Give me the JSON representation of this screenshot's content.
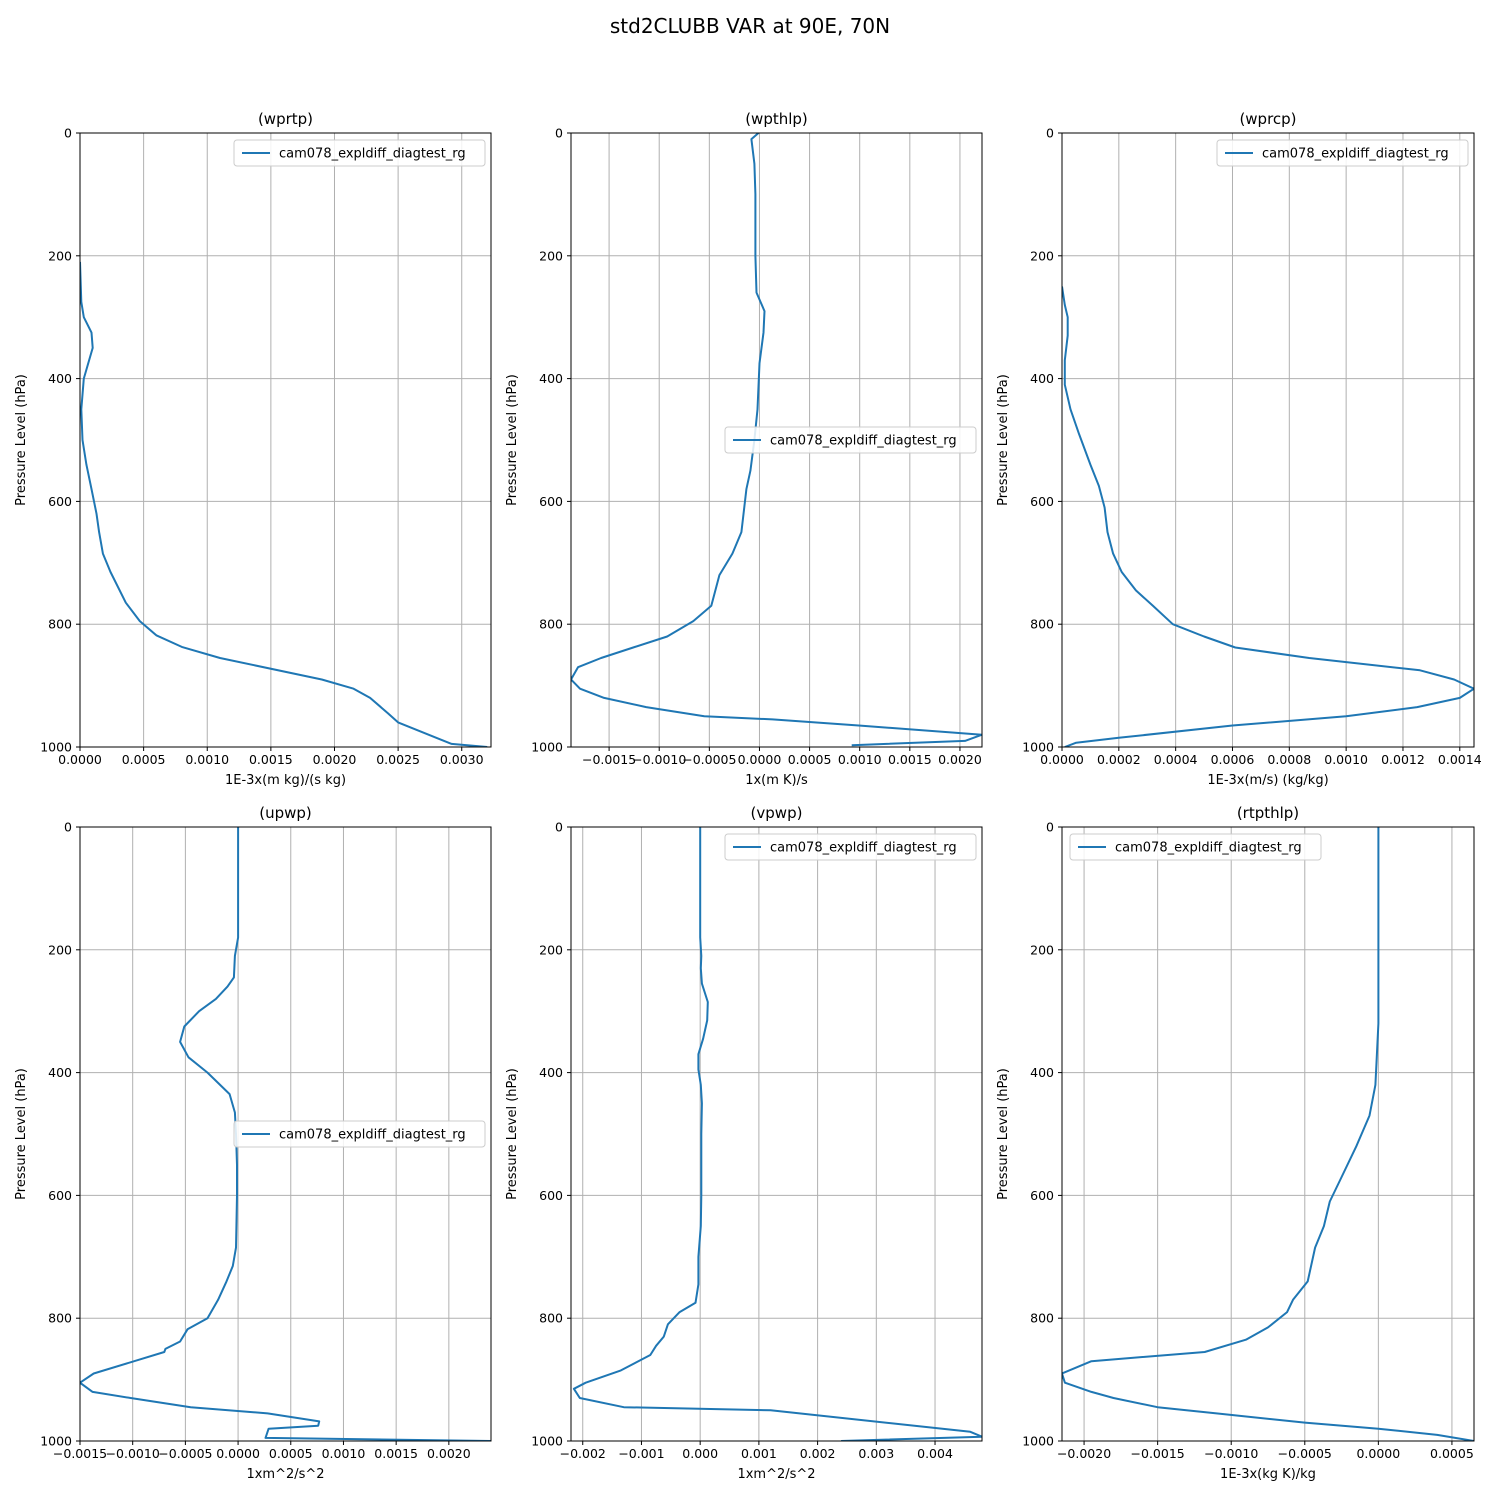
{
  "figure": {
    "title": "std2CLUBB VAR at 90E, 70N",
    "line_color": "#1f77b4",
    "grid_color": "#b0b0b0"
  },
  "chart_data": [
    {
      "type": "line",
      "title": "(wprtp)",
      "xlabel": "1E-3x(m kg)/(s kg)",
      "ylabel": "Pressure Level (hPa)",
      "xlim": [
        0,
        0.00323
      ],
      "ylim": [
        1000,
        0
      ],
      "xticks": [
        0,
        0.0005,
        0.001,
        0.0015,
        0.002,
        0.0025,
        0.003
      ],
      "xtick_labels": [
        "0.0000",
        "0.0005",
        "0.0010",
        "0.0015",
        "0.0020",
        "0.0025",
        "0.0030"
      ],
      "yticks": [
        0,
        200,
        400,
        600,
        800,
        1000
      ],
      "ytick_labels": [
        "0",
        "200",
        "400",
        "600",
        "800",
        "1000"
      ],
      "grid": true,
      "legend": "upper right",
      "series": [
        {
          "name": "cam078_expldiff_diagtest_rg",
          "x": [
            0.0,
            1e-05,
            3e-05,
            9e-05,
            0.0001,
            3e-05,
            1e-05,
            2e-05,
            5e-05,
            9e-05,
            0.00013,
            0.00015,
            0.00018,
            0.00024,
            0.00036,
            0.00047,
            0.0006,
            0.0008,
            0.0011,
            0.0019,
            0.00215,
            0.00228,
            0.00242,
            0.0025,
            0.0028,
            0.00292,
            0.0032
          ],
          "y": [
            210,
            275,
            300,
            325,
            350,
            400,
            450,
            500,
            540,
            580,
            620,
            650,
            685,
            715,
            765,
            795,
            818,
            837,
            855,
            890,
            905,
            920,
            945,
            960,
            985,
            995,
            1000
          ]
        }
      ]
    },
    {
      "type": "line",
      "title": "(wpthlp)",
      "xlabel": "1x(m K)/s",
      "ylabel": "Pressure Level (hPa)",
      "xlim": [
        -0.00188,
        0.00222
      ],
      "ylim": [
        1000,
        0
      ],
      "xticks": [
        -0.0015,
        -0.001,
        -0.0005,
        0,
        0.0005,
        0.001,
        0.0015,
        0.002
      ],
      "xtick_labels": [
        "−0.0015",
        "−0.0010",
        "−0.0005",
        "0.0000",
        "0.0005",
        "0.0010",
        "0.0015",
        "0.0020"
      ],
      "yticks": [
        0,
        200,
        400,
        600,
        800,
        1000
      ],
      "ytick_labels": [
        "0",
        "200",
        "400",
        "600",
        "800",
        "1000"
      ],
      "grid": true,
      "legend": "center right",
      "series": [
        {
          "name": "cam078_expldiff_diagtest_rg",
          "x": [
            -1e-05,
            -8e-05,
            -5e-05,
            -4e-05,
            -4e-05,
            -4e-05,
            -3e-05,
            5e-05,
            4e-05,
            0.0,
            -2e-05,
            -5e-05,
            -9e-05,
            -0.00013,
            -0.00018,
            -0.00027,
            -0.0004,
            -0.00048,
            -0.00066,
            -0.00092,
            -0.00126,
            -0.00158,
            -0.00181,
            -0.00188,
            -0.00179,
            -0.00155,
            -0.00113,
            -0.00055,
            0.00013,
            0.00099,
            0.00222,
            0.00205,
            0.00092
          ],
          "y": [
            0,
            10,
            50,
            100,
            150,
            200,
            260,
            290,
            325,
            375,
            450,
            500,
            550,
            580,
            650,
            685,
            720,
            770,
            795,
            820,
            838,
            855,
            870,
            890,
            905,
            920,
            935,
            950,
            955,
            965,
            980,
            990,
            997
          ]
        }
      ]
    },
    {
      "type": "line",
      "title": "(wprcp)",
      "xlabel": "1E-3x(m/s) (kg/kg)",
      "ylabel": "Pressure Level (hPa)",
      "xlim": [
        0,
        0.00145
      ],
      "ylim": [
        1000,
        0
      ],
      "xticks": [
        0,
        0.0002,
        0.0004,
        0.0006,
        0.0008,
        0.001,
        0.0012,
        0.0014
      ],
      "xtick_labels": [
        "0.0000",
        "0.0002",
        "0.0004",
        "0.0006",
        "0.0008",
        "0.0010",
        "0.0012",
        "0.0014"
      ],
      "yticks": [
        0,
        200,
        400,
        600,
        800,
        1000
      ],
      "ytick_labels": [
        "0",
        "200",
        "400",
        "600",
        "800",
        "1000"
      ],
      "grid": true,
      "legend": "upper right",
      "series": [
        {
          "name": "cam078_expldiff_diagtest_rg",
          "x": [
            0.0,
            1e-05,
            2e-05,
            2e-05,
            1e-05,
            1e-05,
            3e-05,
            6e-05,
            0.0001,
            0.00013,
            0.00015,
            0.00016,
            0.00018,
            0.00021,
            0.00026,
            0.00032,
            0.00039,
            0.0005,
            0.00061,
            0.00087,
            0.00126,
            0.00138,
            0.00145,
            0.0014,
            0.00125,
            0.001,
            0.0006,
            0.0002,
            5e-05,
            1e-05
          ],
          "y": [
            250,
            280,
            300,
            330,
            370,
            410,
            450,
            490,
            540,
            575,
            610,
            650,
            685,
            715,
            745,
            770,
            800,
            820,
            838,
            855,
            875,
            890,
            905,
            920,
            935,
            950,
            965,
            985,
            993,
            1000
          ]
        }
      ]
    },
    {
      "type": "line",
      "title": "(upwp)",
      "xlabel": "1xm^2/s^2",
      "ylabel": "Pressure Level (hPa)",
      "xlim": [
        -0.0015,
        0.0024
      ],
      "ylim": [
        1000,
        0
      ],
      "xticks": [
        -0.0015,
        -0.001,
        -0.0005,
        0,
        0.0005,
        0.001,
        0.0015,
        0.002
      ],
      "xtick_labels": [
        "−0.0015",
        "−0.0010",
        "−0.0005",
        "0.0000",
        "0.0005",
        "0.0010",
        "0.0015",
        "0.0020"
      ],
      "yticks": [
        0,
        200,
        400,
        600,
        800,
        1000
      ],
      "ytick_labels": [
        "0",
        "200",
        "400",
        "600",
        "800",
        "1000"
      ],
      "grid": true,
      "legend": "center right",
      "series": [
        {
          "name": "cam078_expldiff_diagtest_rg",
          "x": [
            0.0,
            0.0,
            0.0,
            -3e-05,
            -4e-05,
            -0.0001,
            -0.00021,
            -0.00037,
            -0.00051,
            -0.00055,
            -0.00047,
            -0.00029,
            -8e-05,
            -3e-05,
            -2e-05,
            -1e-05,
            -1e-05,
            -2e-05,
            -5e-05,
            -0.00011,
            -0.00019,
            -0.00029,
            -0.00048,
            -0.00055,
            -0.00069,
            -0.0007,
            -0.00137,
            -0.0015,
            -0.00138,
            -0.00102,
            -0.00045,
            0.00028,
            0.00077,
            0.00076,
            0.00029,
            0.00026,
            0.0024
          ],
          "y": [
            0,
            100,
            180,
            210,
            245,
            260,
            280,
            300,
            325,
            350,
            375,
            400,
            435,
            465,
            500,
            550,
            600,
            685,
            715,
            740,
            770,
            800,
            818,
            838,
            850,
            855,
            890,
            905,
            920,
            930,
            945,
            955,
            968,
            975,
            980,
            995,
            1000
          ]
        }
      ]
    },
    {
      "type": "line",
      "title": "(vpwp)",
      "xlabel": "1xm^2/s^2",
      "ylabel": "Pressure Level (hPa)",
      "xlim": [
        -0.0022,
        0.0048
      ],
      "ylim": [
        1000,
        0
      ],
      "xticks": [
        -0.002,
        -0.001,
        0,
        0.001,
        0.002,
        0.003,
        0.004
      ],
      "xtick_labels": [
        "−0.002",
        "−0.001",
        "0.000",
        "0.001",
        "0.002",
        "0.003",
        "0.004"
      ],
      "yticks": [
        0,
        200,
        400,
        600,
        800,
        1000
      ],
      "ytick_labels": [
        "0",
        "200",
        "400",
        "600",
        "800",
        "1000"
      ],
      "grid": true,
      "legend": "upper right",
      "series": [
        {
          "name": "cam078_expldiff_diagtest_rg",
          "x": [
            0.0,
            0.0,
            0.0,
            2e-05,
            1e-05,
            3e-05,
            0.00013,
            0.00012,
            5e-05,
            -3e-05,
            -3e-05,
            1e-05,
            3e-05,
            2e-05,
            2e-05,
            2e-05,
            1e-05,
            -3e-05,
            -3e-05,
            -8e-05,
            -0.00035,
            -0.00055,
            -0.00062,
            -0.00075,
            -0.00085,
            -0.00135,
            -0.00195,
            -0.00215,
            -0.00205,
            -0.0013,
            0.0012,
            0.0046,
            0.0048,
            0.0024
          ],
          "y": [
            0,
            100,
            180,
            210,
            230,
            255,
            285,
            315,
            345,
            370,
            395,
            420,
            450,
            500,
            550,
            600,
            650,
            700,
            745,
            775,
            790,
            810,
            830,
            845,
            860,
            885,
            905,
            915,
            930,
            945,
            950,
            985,
            993,
            1000
          ]
        }
      ]
    },
    {
      "type": "line",
      "title": "(rtpthlp)",
      "xlabel": "1E-3x(kg K)/kg",
      "ylabel": "Pressure Level (hPa)",
      "xlim": [
        -0.00215,
        0.00065
      ],
      "ylim": [
        1000,
        0
      ],
      "xticks": [
        -0.002,
        -0.0015,
        -0.001,
        -0.0005,
        0,
        0.0005
      ],
      "xtick_labels": [
        "−0.0020",
        "−0.0015",
        "−0.0010",
        "−0.0005",
        "0.0000",
        "0.0005"
      ],
      "yticks": [
        0,
        200,
        400,
        600,
        800,
        1000
      ],
      "ytick_labels": [
        "0",
        "200",
        "400",
        "600",
        "800",
        "1000"
      ],
      "grid": true,
      "legend": "upper left",
      "series": [
        {
          "name": "cam078_expldiff_diagtest_rg",
          "x": [
            0.0,
            0.0,
            0.0,
            -2e-05,
            -6e-05,
            -0.00015,
            -0.00025,
            -0.00033,
            -0.00037,
            -0.00043,
            -0.00048,
            -0.00058,
            -0.00062,
            -0.00075,
            -0.0009,
            -0.00118,
            -0.00195,
            -0.00215,
            -0.00213,
            -0.00195,
            -0.0018,
            -0.0015,
            -0.0011,
            -0.0005,
            0.0,
            0.0004,
            0.00065
          ],
          "y": [
            0,
            150,
            320,
            420,
            470,
            520,
            570,
            610,
            650,
            685,
            740,
            770,
            790,
            815,
            835,
            855,
            870,
            890,
            905,
            920,
            930,
            945,
            955,
            970,
            980,
            990,
            1000
          ]
        }
      ]
    }
  ]
}
